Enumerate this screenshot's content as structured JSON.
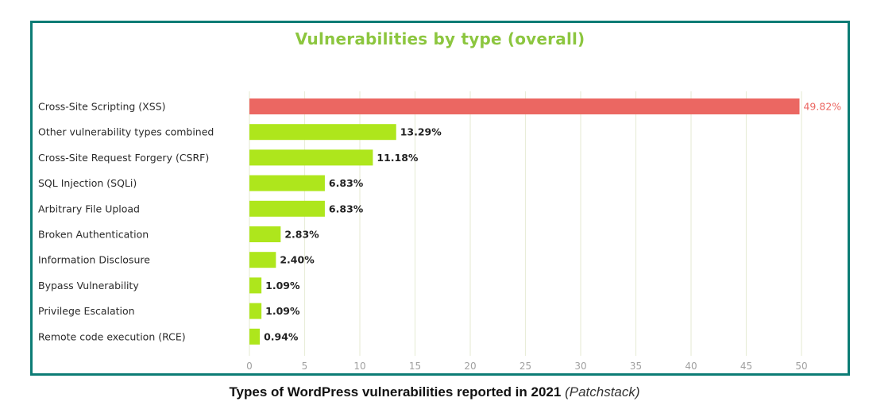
{
  "chart_data": {
    "type": "bar",
    "orientation": "horizontal",
    "title": "Vulnerabilities by type (overall)",
    "categories": [
      "Cross-Site Scripting (XSS)",
      "Other vulnerability types combined",
      "Cross-Site Request Forgery (CSRF)",
      "SQL Injection (SQLi)",
      "Arbitrary File Upload",
      "Broken Authentication",
      "Information Disclosure",
      "Bypass Vulnerability",
      "Privilege Escalation",
      "Remote code execution (RCE)"
    ],
    "values": [
      49.82,
      13.29,
      11.18,
      6.83,
      6.83,
      2.83,
      2.4,
      1.09,
      1.09,
      0.94
    ],
    "value_labels": [
      "49.82%",
      "13.29%",
      "11.18%",
      "6.83%",
      "6.83%",
      "2.83%",
      "2.40%",
      "1.09%",
      "1.09%",
      "0.94%"
    ],
    "xlim": [
      0,
      50
    ],
    "x_ticks": [
      0,
      5,
      10,
      15,
      20,
      25,
      30,
      35,
      40,
      45,
      50
    ],
    "grid": "vertical",
    "colors": {
      "highlight": "#eb6762",
      "default": "#aee61c",
      "grid": "#e9edd9",
      "tick": "#a0a0a0",
      "frame": "#0c7c75",
      "title": "#8cc63f"
    }
  },
  "caption": {
    "main": "Types of WordPress vulnerabilities reported in 2021",
    "source": "(Patchstack)"
  }
}
